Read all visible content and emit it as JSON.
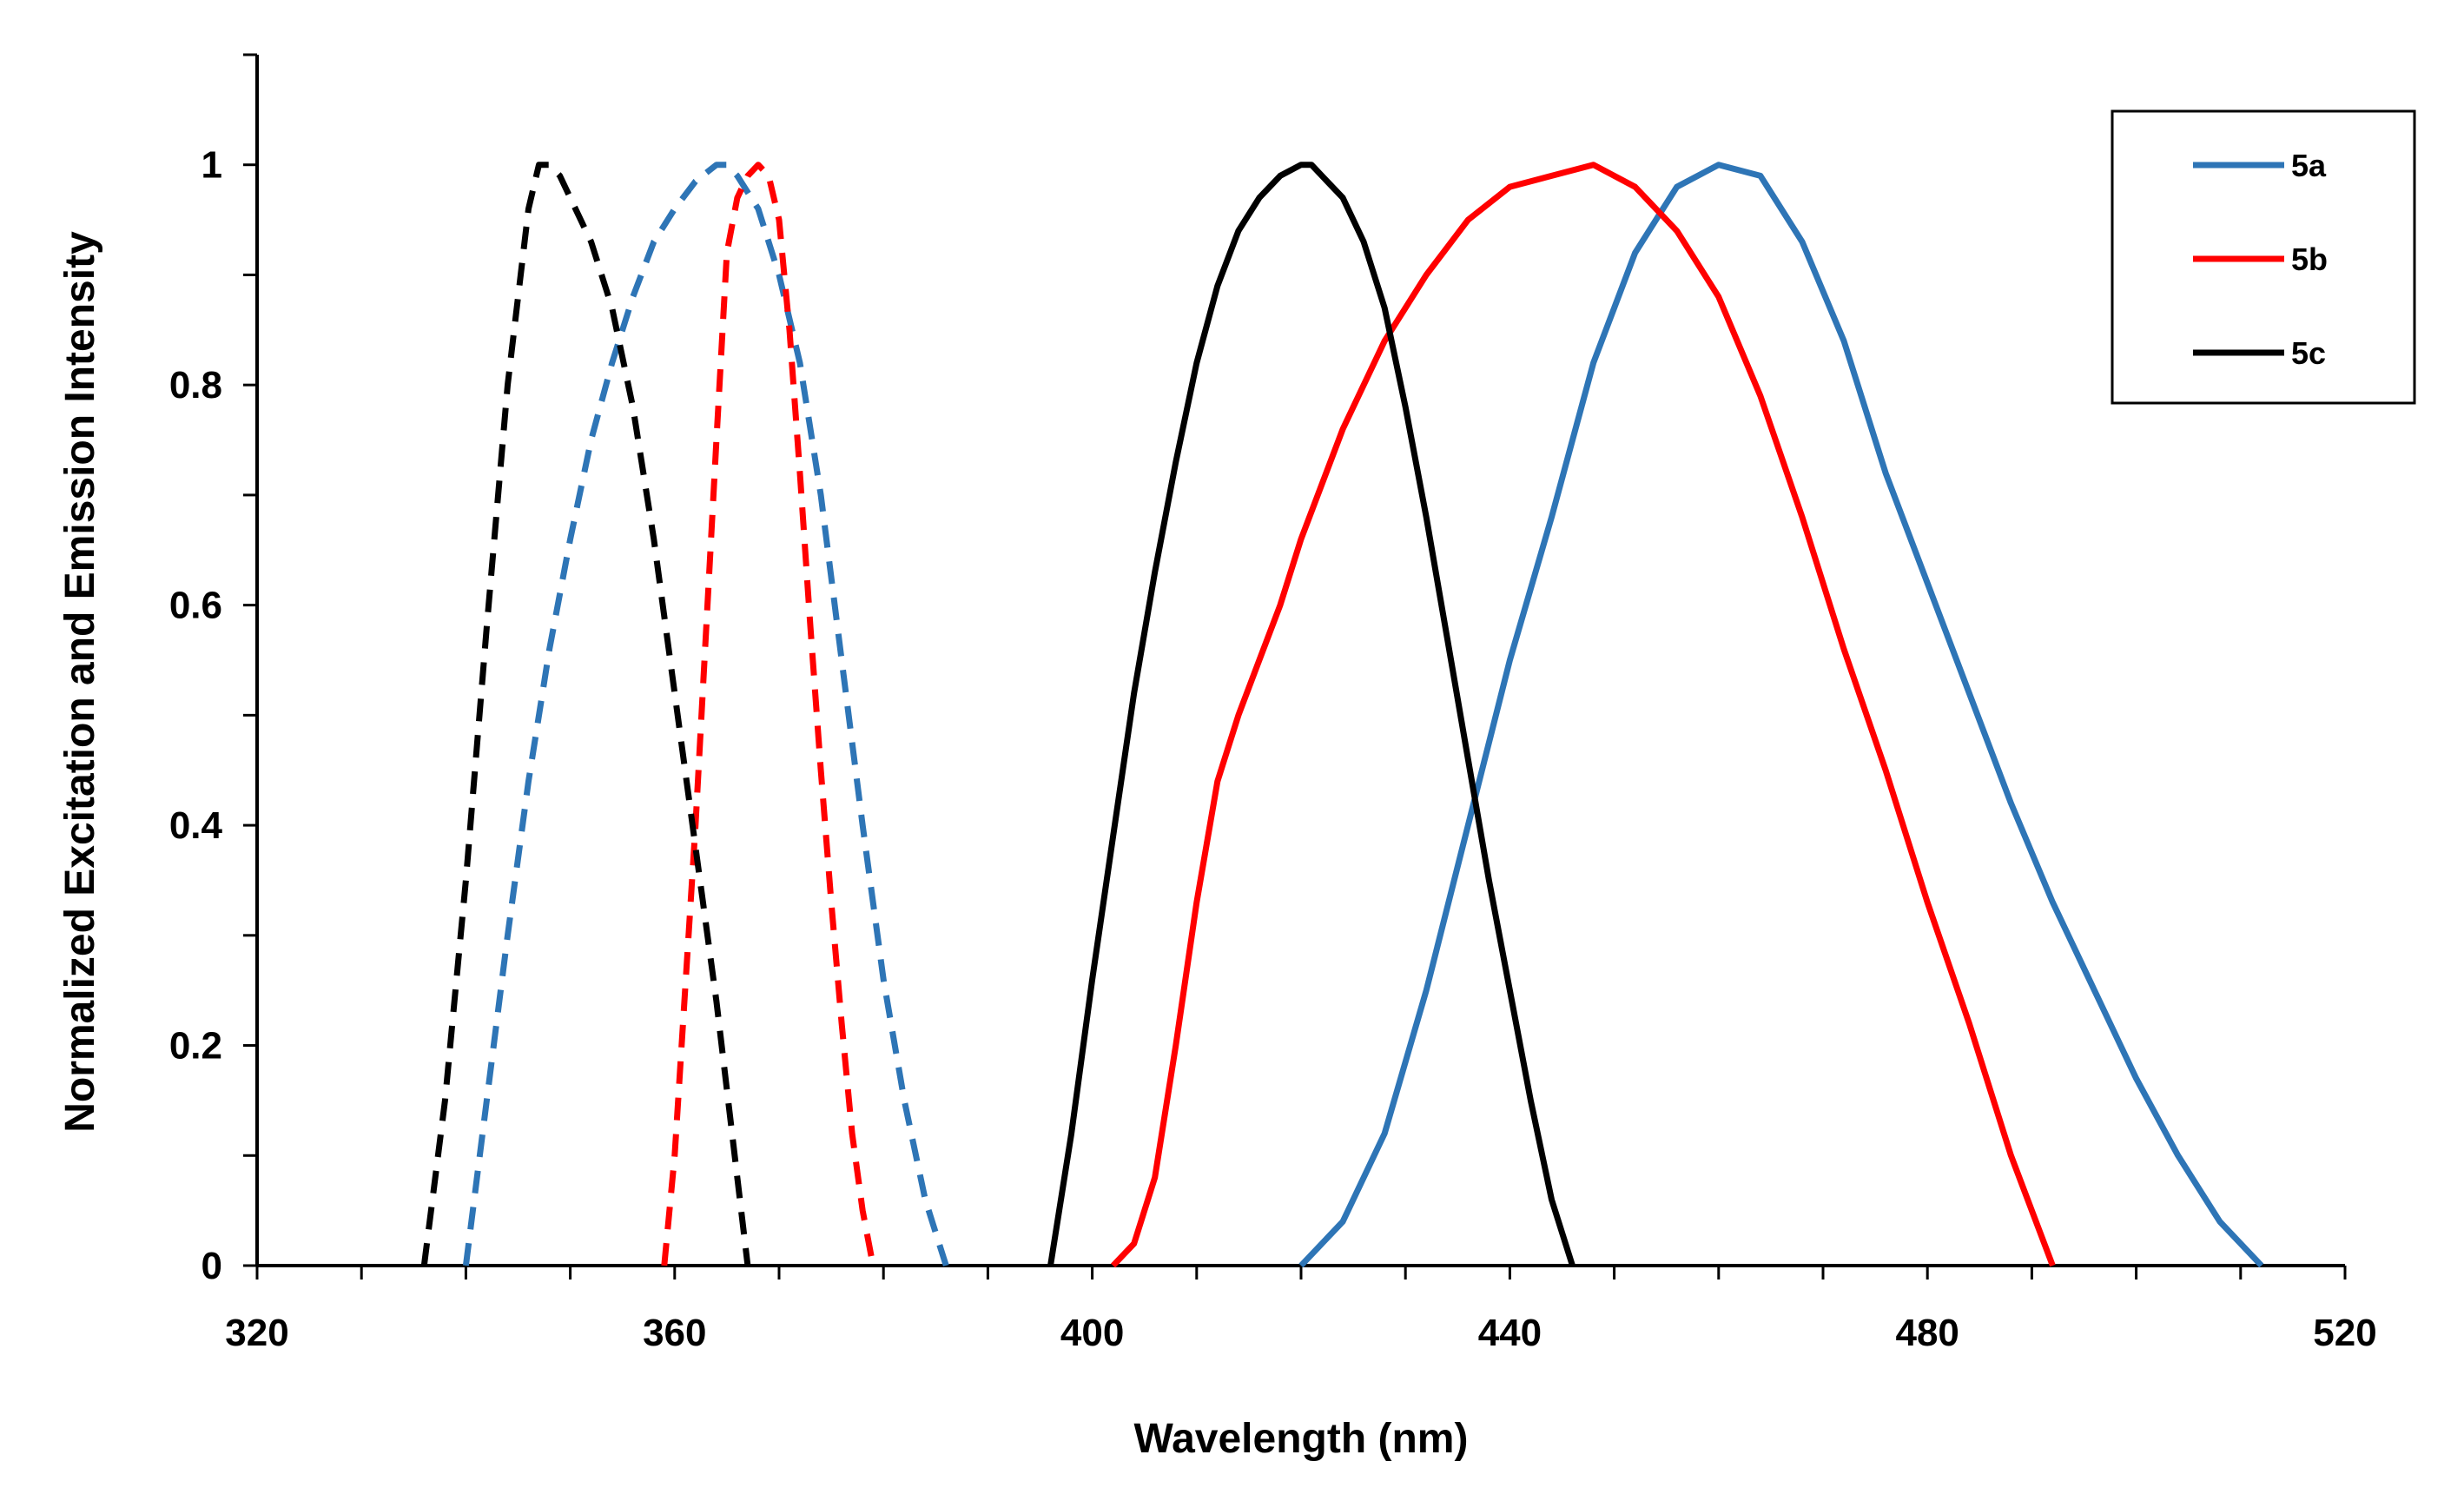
{
  "chart_data": {
    "type": "line",
    "title": "",
    "xlabel": "Wavelength (nm)",
    "ylabel": "Normalized Excitation and Emission Intensity",
    "xlim": [
      320,
      520
    ],
    "ylim": [
      0,
      1.1
    ],
    "x_ticks": [
      320,
      360,
      400,
      440,
      480,
      520
    ],
    "x_tick_labels": [
      "320",
      "360",
      "400",
      "440",
      "480",
      "520"
    ],
    "x_minor_step": 10,
    "y_ticks": [
      0,
      0.2,
      0.4,
      0.6,
      0.8,
      1
    ],
    "y_tick_labels": [
      "0",
      "0.2",
      "0.4",
      "0.6",
      "0.8",
      "1"
    ],
    "y_minor_step": 0.1,
    "grid": false,
    "legend_position": "top-right",
    "legend": [
      {
        "name": "5a",
        "color": "#2e75b6"
      },
      {
        "name": "5b",
        "color": "#ff0000"
      },
      {
        "name": "5c",
        "color": "#000000"
      }
    ],
    "series": [
      {
        "name": "5a excitation",
        "color": "#2e75b6",
        "style": "dashed",
        "x": [
          340,
          342,
          344,
          346,
          348,
          350,
          352,
          354,
          356,
          358,
          360,
          362,
          364,
          365,
          366,
          368,
          370,
          372,
          374,
          376,
          378,
          380,
          382,
          384,
          386
        ],
        "y": [
          0,
          0.15,
          0.3,
          0.44,
          0.56,
          0.66,
          0.75,
          0.82,
          0.88,
          0.93,
          0.96,
          0.985,
          1.0,
          1.0,
          0.99,
          0.96,
          0.9,
          0.82,
          0.7,
          0.55,
          0.4,
          0.26,
          0.15,
          0.06,
          0
        ]
      },
      {
        "name": "5b excitation",
        "color": "#ff0000",
        "style": "dashed",
        "x": [
          359,
          360,
          362,
          364,
          365,
          366,
          367,
          368,
          369,
          370,
          371,
          372,
          373,
          374,
          375,
          376,
          377,
          378,
          379
        ],
        "y": [
          0,
          0.1,
          0.4,
          0.75,
          0.92,
          0.97,
          0.99,
          1.0,
          0.99,
          0.95,
          0.85,
          0.72,
          0.58,
          0.45,
          0.33,
          0.22,
          0.12,
          0.05,
          0
        ]
      },
      {
        "name": "5c excitation",
        "color": "#000000",
        "style": "dashed",
        "x": [
          336,
          338,
          340,
          342,
          344,
          346,
          347,
          348,
          349,
          350,
          352,
          354,
          356,
          358,
          360,
          362,
          364,
          366,
          367
        ],
        "y": [
          0,
          0.15,
          0.35,
          0.58,
          0.8,
          0.96,
          1.0,
          1.0,
          0.99,
          0.97,
          0.93,
          0.87,
          0.78,
          0.66,
          0.52,
          0.38,
          0.24,
          0.08,
          0
        ]
      },
      {
        "name": "5a",
        "color": "#2e75b6",
        "style": "solid",
        "x": [
          420,
          424,
          428,
          432,
          436,
          440,
          444,
          448,
          452,
          456,
          460,
          464,
          468,
          472,
          476,
          480,
          484,
          488,
          492,
          496,
          500,
          504,
          508,
          512
        ],
        "y": [
          0,
          0.04,
          0.12,
          0.25,
          0.4,
          0.55,
          0.68,
          0.82,
          0.92,
          0.98,
          1.0,
          0.99,
          0.93,
          0.84,
          0.72,
          0.62,
          0.52,
          0.42,
          0.33,
          0.25,
          0.17,
          0.1,
          0.04,
          0
        ]
      },
      {
        "name": "5b",
        "color": "#ff0000",
        "style": "solid",
        "x": [
          402,
          404,
          406,
          408,
          410,
          412,
          414,
          416,
          418,
          420,
          424,
          428,
          432,
          436,
          440,
          444,
          448,
          452,
          456,
          460,
          464,
          468,
          472,
          476,
          480,
          484,
          488,
          492
        ],
        "y": [
          0,
          0.02,
          0.08,
          0.2,
          0.33,
          0.44,
          0.5,
          0.55,
          0.6,
          0.66,
          0.76,
          0.84,
          0.9,
          0.95,
          0.98,
          0.99,
          1.0,
          0.98,
          0.94,
          0.88,
          0.79,
          0.68,
          0.56,
          0.45,
          0.33,
          0.22,
          0.1,
          0
        ]
      },
      {
        "name": "5c",
        "color": "#000000",
        "style": "solid",
        "x": [
          396,
          398,
          400,
          402,
          404,
          406,
          408,
          410,
          412,
          414,
          416,
          418,
          420,
          421,
          422,
          424,
          426,
          428,
          430,
          432,
          434,
          436,
          438,
          440,
          442,
          444,
          446
        ],
        "y": [
          0,
          0.12,
          0.26,
          0.39,
          0.52,
          0.63,
          0.73,
          0.82,
          0.89,
          0.94,
          0.97,
          0.99,
          1.0,
          1.0,
          0.99,
          0.97,
          0.93,
          0.87,
          0.78,
          0.68,
          0.57,
          0.46,
          0.35,
          0.25,
          0.15,
          0.06,
          0
        ]
      }
    ]
  }
}
